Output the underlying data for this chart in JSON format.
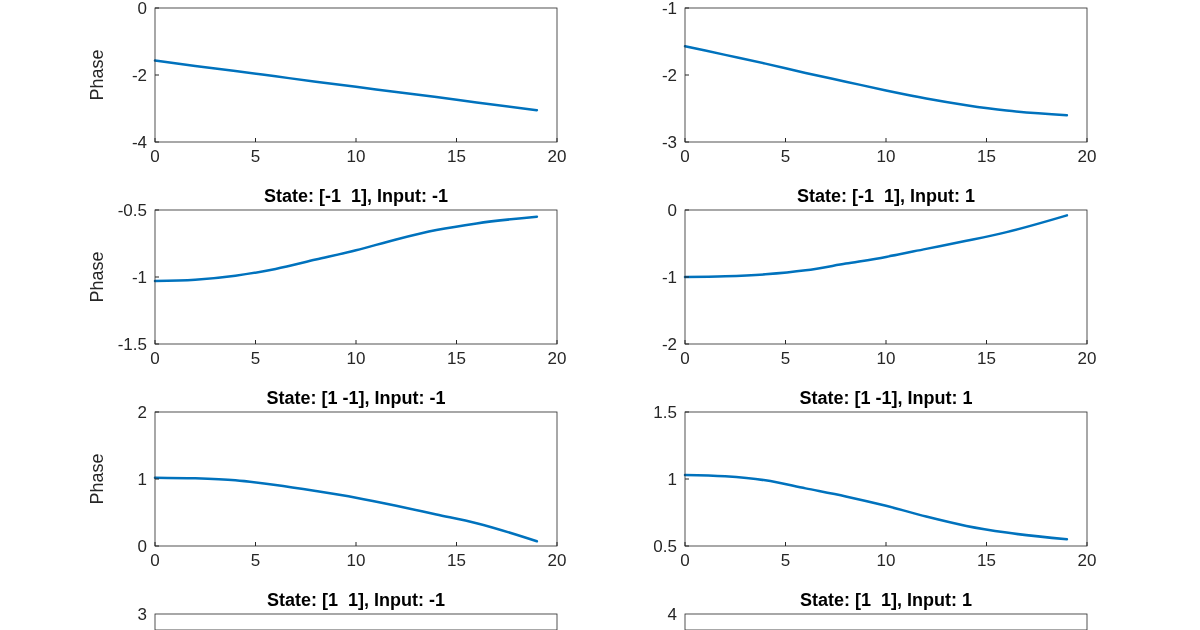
{
  "chart_data": [
    {
      "type": "line",
      "ylabel": "Phase",
      "x": [
        0,
        2,
        4,
        6,
        8,
        10,
        12,
        14,
        16,
        19
      ],
      "xlim": [
        0,
        20
      ],
      "xticks": [
        0,
        5,
        10,
        15,
        20
      ],
      "ylim": [
        -4,
        0
      ],
      "yticks": [
        -4,
        -2,
        0
      ],
      "series": [
        {
          "color": "#0072bd",
          "values": [
            -1.57,
            -1.73,
            -1.88,
            -2.04,
            -2.2,
            -2.35,
            -2.51,
            -2.66,
            -2.82,
            -3.05
          ]
        }
      ]
    },
    {
      "type": "line",
      "x": [
        0,
        2,
        4,
        6,
        8,
        10,
        12,
        14,
        16,
        19
      ],
      "xlim": [
        0,
        20
      ],
      "xticks": [
        0,
        5,
        10,
        15,
        20
      ],
      "ylim": [
        -3,
        -1
      ],
      "yticks": [
        -3,
        -2,
        -1
      ],
      "series": [
        {
          "color": "#0072bd",
          "values": [
            -1.57,
            -1.7,
            -1.83,
            -1.97,
            -2.1,
            -2.23,
            -2.35,
            -2.45,
            -2.53,
            -2.6
          ]
        }
      ]
    },
    {
      "type": "line",
      "title": "State: [-1  1], Input: -1",
      "ylabel": "Phase",
      "x": [
        0,
        2,
        4,
        6,
        8,
        10,
        12,
        14,
        16,
        19
      ],
      "xlim": [
        0,
        20
      ],
      "xticks": [
        0,
        5,
        10,
        15,
        20
      ],
      "ylim": [
        -1.5,
        -0.5
      ],
      "yticks": [
        -1.5,
        -1,
        -0.5
      ],
      "series": [
        {
          "color": "#0072bd",
          "values": [
            -1.03,
            -1.02,
            -0.99,
            -0.94,
            -0.87,
            -0.8,
            -0.72,
            -0.65,
            -0.6,
            -0.55
          ]
        }
      ]
    },
    {
      "type": "line",
      "title": "State: [-1  1], Input: 1",
      "x": [
        0,
        2,
        4,
        6,
        8,
        10,
        12,
        14,
        16,
        19
      ],
      "xlim": [
        0,
        20
      ],
      "xticks": [
        0,
        5,
        10,
        15,
        20
      ],
      "ylim": [
        -2,
        0
      ],
      "yticks": [
        -2,
        -1,
        0
      ],
      "series": [
        {
          "color": "#0072bd",
          "values": [
            -1.0,
            -0.99,
            -0.96,
            -0.9,
            -0.8,
            -0.7,
            -0.58,
            -0.46,
            -0.33,
            -0.08
          ]
        }
      ]
    },
    {
      "type": "line",
      "title": "State: [1 -1], Input: -1",
      "ylabel": "Phase",
      "x": [
        0,
        2,
        4,
        6,
        8,
        10,
        12,
        14,
        16,
        19
      ],
      "xlim": [
        0,
        20
      ],
      "xticks": [
        0,
        5,
        10,
        15,
        20
      ],
      "ylim": [
        0,
        2
      ],
      "yticks": [
        0,
        1,
        2
      ],
      "series": [
        {
          "color": "#0072bd",
          "values": [
            1.02,
            1.01,
            0.98,
            0.91,
            0.82,
            0.72,
            0.6,
            0.47,
            0.34,
            0.07
          ]
        }
      ]
    },
    {
      "type": "line",
      "title": "State: [1 -1], Input: 1",
      "x": [
        0,
        2,
        4,
        6,
        8,
        10,
        12,
        14,
        16,
        19
      ],
      "xlim": [
        0,
        20
      ],
      "xticks": [
        0,
        5,
        10,
        15,
        20
      ],
      "ylim": [
        0.5,
        1.5
      ],
      "yticks": [
        0.5,
        1,
        1.5
      ],
      "series": [
        {
          "color": "#0072bd",
          "values": [
            1.03,
            1.02,
            0.99,
            0.93,
            0.87,
            0.8,
            0.72,
            0.65,
            0.6,
            0.55
          ]
        }
      ]
    },
    {
      "type": "other",
      "title": "State: [1  1], Input: -1",
      "annotations": [
        "3"
      ]
    },
    {
      "type": "other",
      "title": "State: [1  1], Input: 1",
      "annotations": [
        "4"
      ]
    }
  ]
}
